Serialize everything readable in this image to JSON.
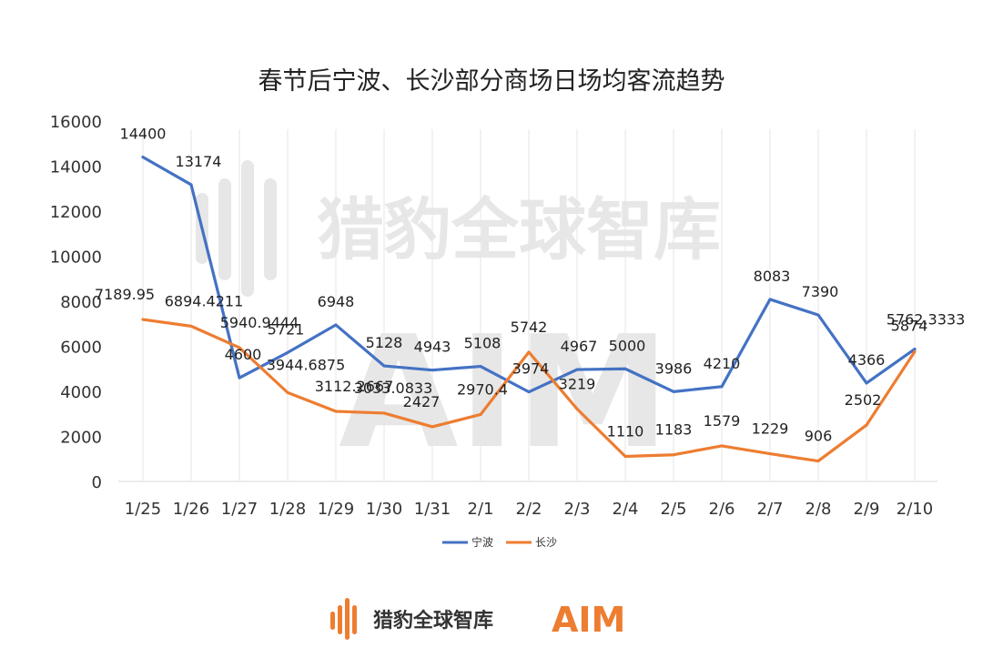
{
  "chart_data": {
    "type": "line",
    "title": "春节后宁波、长沙部分商场日场均客流趋势",
    "xlabel": "",
    "ylabel": "",
    "categories": [
      "1/25",
      "1/26",
      "1/27",
      "1/28",
      "1/29",
      "1/30",
      "1/31",
      "2/1",
      "2/2",
      "2/3",
      "2/4",
      "2/5",
      "2/6",
      "2/7",
      "2/8",
      "2/9",
      "2/10"
    ],
    "ylim": [
      0,
      16000
    ],
    "yticks": [
      0,
      2000,
      4000,
      6000,
      8000,
      10000,
      12000,
      14000,
      16000
    ],
    "grid": false,
    "legend_position": "bottom",
    "series": [
      {
        "name": "宁波",
        "color": "#4472C4",
        "values": [
          14400,
          13174,
          4600,
          5721,
          6948,
          5128,
          4943,
          5108,
          3974,
          4967,
          5000,
          3986,
          4210,
          8083,
          7390,
          4366,
          5874
        ],
        "labels": [
          "14400",
          "13174",
          "4600",
          "5721",
          "6948",
          "5128",
          "4943",
          "5108",
          "3974",
          "4967",
          "5000",
          "3986",
          "4210",
          "8083",
          "7390",
          "4366",
          "5874"
        ]
      },
      {
        "name": "长沙",
        "color": "#ED7D31",
        "values": [
          7189.95,
          6894.4211,
          5940.9444,
          3944.6875,
          3112.2667,
          3033.0833,
          2427,
          2970.4,
          5742,
          3219,
          1110,
          1183,
          1579,
          1229,
          906,
          2502,
          5762.3333
        ],
        "labels": [
          "7189.95",
          "6894.4211",
          "5940.9444",
          "3944.6875",
          "3112.2667",
          "3033.0833",
          "2427",
          "2970.4",
          "5742",
          "3219",
          "1110",
          "1183",
          "1579",
          "1229",
          "906",
          "2502",
          "5762.3333"
        ]
      }
    ]
  },
  "watermark": {
    "brand_text": "猎豹全球智库",
    "aim_text": "AIM"
  },
  "footer": {
    "brand_text": "猎豹全球智库",
    "aim_text": "AIM",
    "brand_color": "#ED7D31"
  }
}
